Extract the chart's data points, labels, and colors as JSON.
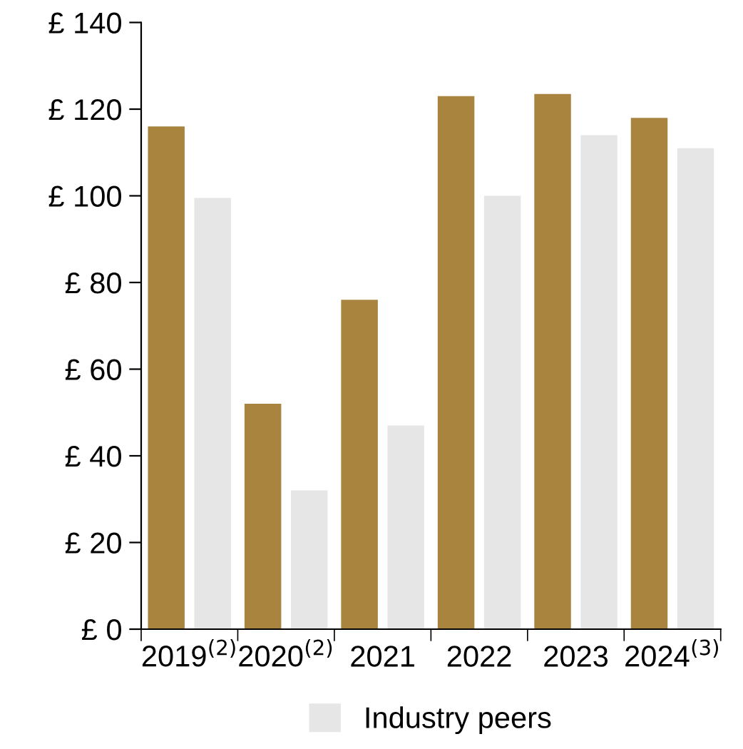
{
  "chart_data": {
    "type": "bar",
    "categories": [
      "2019$^{(2)}$",
      "2020$^{(2)}$",
      "2021",
      "2022",
      "2023",
      "2024$^{(3)}$"
    ],
    "series": [
      {
        "color": "#a8843f",
        "values": [
          116,
          52,
          76,
          123,
          123.5,
          118
        ]
      },
      {
        "name": "Industry peers",
        "color": "#e6e6e6",
        "values": [
          99.5,
          32,
          47,
          100,
          114,
          111
        ]
      }
    ],
    "ylim": [
      0,
      140
    ],
    "yticks": [
      {
        "value": 0,
        "label": "£ 0"
      },
      {
        "value": 20,
        "label": "£ 20"
      },
      {
        "value": 40,
        "label": "£ 40"
      },
      {
        "value": 60,
        "label": "£ 60"
      },
      {
        "value": 80,
        "label": "£ 80"
      },
      {
        "value": 100,
        "label": "£ 100"
      },
      {
        "value": 120,
        "label": "£ 120"
      },
      {
        "value": 140,
        "label": "£ 140"
      }
    ],
    "grid": false,
    "legend": "bottom"
  }
}
